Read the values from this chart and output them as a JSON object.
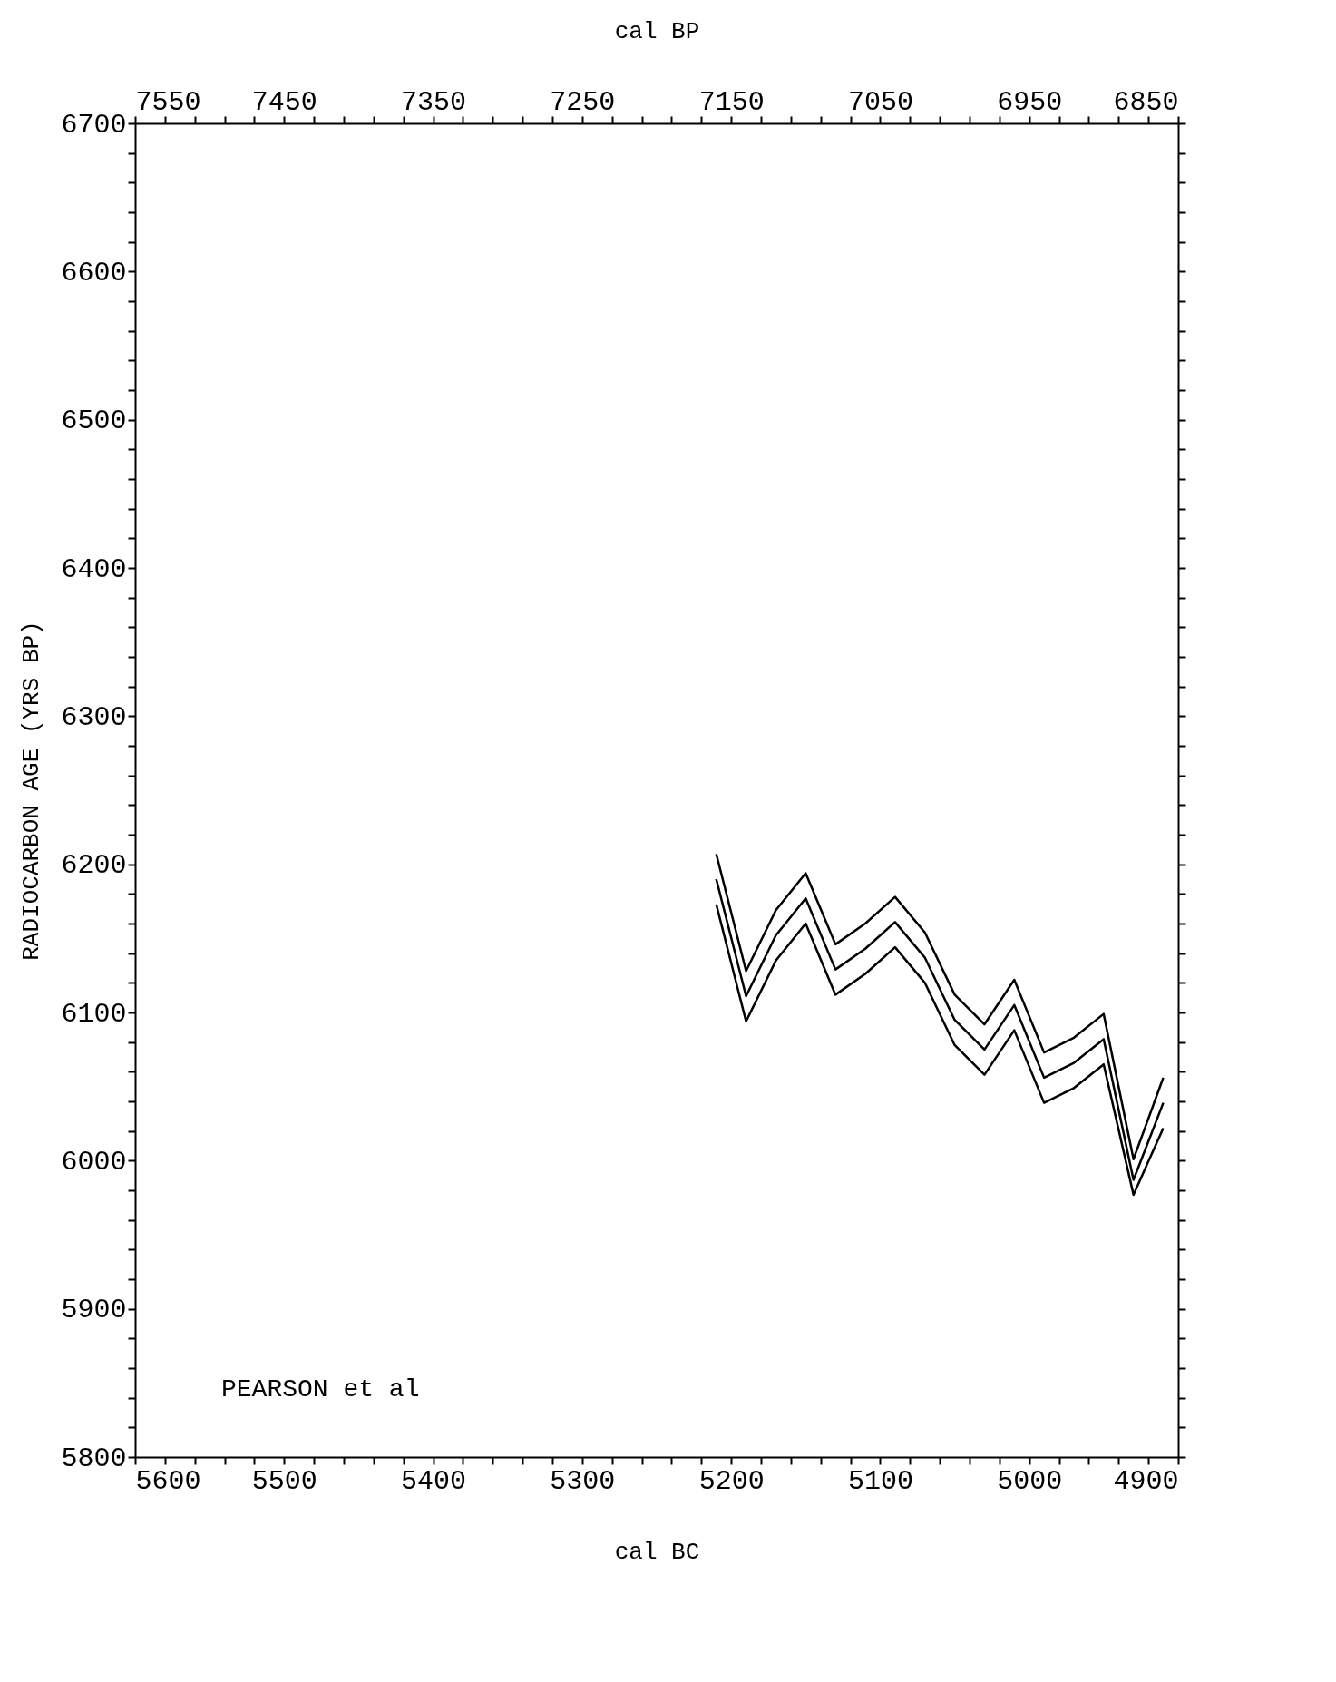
{
  "chart_data": {
    "type": "line",
    "xlabel": "cal BC",
    "x2label": "cal BP",
    "ylabel": "RADIOCARBON AGE (YRS BP)",
    "annotations": [
      "PEARSON et al"
    ],
    "x": [
      5210,
      5190,
      5170,
      5150,
      5130,
      5110,
      5090,
      5070,
      5050,
      5030,
      5010,
      4990,
      4970,
      4950,
      4930,
      4910
    ],
    "series": [
      {
        "color": "#000000",
        "values": [
          6207,
          6128,
          6169,
          6194,
          6146,
          6160,
          6178,
          6154,
          6112,
          6092,
          6122,
          6073,
          6083,
          6099,
          6001,
          6056
        ]
      },
      {
        "color": "#000000",
        "values": [
          6190,
          6111,
          6152,
          6177,
          6129,
          6143,
          6161,
          6137,
          6095,
          6075,
          6105,
          6056,
          6066,
          6082,
          5987,
          6039
        ]
      },
      {
        "color": "#000000",
        "values": [
          6173,
          6094,
          6135,
          6160,
          6112,
          6126,
          6144,
          6120,
          6078,
          6058,
          6088,
          6039,
          6049,
          6065,
          5977,
          6022
        ]
      }
    ],
    "xlim": [
      5600,
      4900
    ],
    "xticks": [
      5600,
      {
        "value": 5580,
        "label": null
      },
      {
        "value": 5560,
        "label": null
      },
      {
        "value": 5540,
        "label": null
      },
      {
        "value": 5520,
        "label": null
      },
      5500,
      {
        "value": 5480,
        "label": null
      },
      {
        "value": 5460,
        "label": null
      },
      {
        "value": 5440,
        "label": null
      },
      {
        "value": 5420,
        "label": null
      },
      5400,
      {
        "value": 5380,
        "label": null
      },
      {
        "value": 5360,
        "label": null
      },
      {
        "value": 5340,
        "label": null
      },
      {
        "value": 5320,
        "label": null
      },
      5300,
      {
        "value": 5280,
        "label": null
      },
      {
        "value": 5260,
        "label": null
      },
      {
        "value": 5240,
        "label": null
      },
      {
        "value": 5220,
        "label": null
      },
      5200,
      {
        "value": 5180,
        "label": null
      },
      {
        "value": 5160,
        "label": null
      },
      {
        "value": 5140,
        "label": null
      },
      {
        "value": 5120,
        "label": null
      },
      5100,
      {
        "value": 5080,
        "label": null
      },
      {
        "value": 5060,
        "label": null
      },
      {
        "value": 5040,
        "label": null
      },
      {
        "value": 5020,
        "label": null
      },
      5000,
      {
        "value": 4980,
        "label": null
      },
      {
        "value": 4960,
        "label": null
      },
      {
        "value": 4940,
        "label": null
      },
      {
        "value": 4920,
        "label": null
      },
      4900
    ],
    "x2lim": [
      7550,
      6850
    ],
    "x2ticks": [
      7550,
      {
        "value": 7530,
        "label": null
      },
      {
        "value": 7510,
        "label": null
      },
      {
        "value": 7490,
        "label": null
      },
      {
        "value": 7470,
        "label": null
      },
      7450,
      {
        "value": 7430,
        "label": null
      },
      {
        "value": 7410,
        "label": null
      },
      {
        "value": 7390,
        "label": null
      },
      {
        "value": 7370,
        "label": null
      },
      7350,
      {
        "value": 7330,
        "label": null
      },
      {
        "value": 7310,
        "label": null
      },
      {
        "value": 7290,
        "label": null
      },
      {
        "value": 7270,
        "label": null
      },
      7250,
      {
        "value": 7230,
        "label": null
      },
      {
        "value": 7210,
        "label": null
      },
      {
        "value": 7190,
        "label": null
      },
      {
        "value": 7170,
        "label": null
      },
      7150,
      {
        "value": 7130,
        "label": null
      },
      {
        "value": 7110,
        "label": null
      },
      {
        "value": 7090,
        "label": null
      },
      {
        "value": 7070,
        "label": null
      },
      7050,
      {
        "value": 7030,
        "label": null
      },
      {
        "value": 7010,
        "label": null
      },
      {
        "value": 6990,
        "label": null
      },
      {
        "value": 6970,
        "label": null
      },
      6950,
      {
        "value": 6930,
        "label": null
      },
      {
        "value": 6910,
        "label": null
      },
      {
        "value": 6890,
        "label": null
      },
      {
        "value": 6870,
        "label": null
      },
      6850
    ],
    "ylim": [
      5800,
      6700
    ],
    "yticks": [
      5800,
      {
        "value": 5820,
        "label": null
      },
      {
        "value": 5840,
        "label": null
      },
      {
        "value": 5860,
        "label": null
      },
      {
        "value": 5880,
        "label": null
      },
      5900,
      {
        "value": 5920,
        "label": null
      },
      {
        "value": 5940,
        "label": null
      },
      {
        "value": 5960,
        "label": null
      },
      {
        "value": 5980,
        "label": null
      },
      6000,
      {
        "value": 6020,
        "label": null
      },
      {
        "value": 6040,
        "label": null
      },
      {
        "value": 6060,
        "label": null
      },
      {
        "value": 6080,
        "label": null
      },
      6100,
      {
        "value": 6120,
        "label": null
      },
      {
        "value": 6140,
        "label": null
      },
      {
        "value": 6160,
        "label": null
      },
      {
        "value": 6180,
        "label": null
      },
      6200,
      {
        "value": 6220,
        "label": null
      },
      {
        "value": 6240,
        "label": null
      },
      {
        "value": 6260,
        "label": null
      },
      {
        "value": 6280,
        "label": null
      },
      6300,
      {
        "value": 6320,
        "label": null
      },
      {
        "value": 6340,
        "label": null
      },
      {
        "value": 6360,
        "label": null
      },
      {
        "value": 6380,
        "label": null
      },
      6400,
      {
        "value": 6420,
        "label": null
      },
      {
        "value": 6440,
        "label": null
      },
      {
        "value": 6460,
        "label": null
      },
      {
        "value": 6480,
        "label": null
      },
      6500,
      {
        "value": 6520,
        "label": null
      },
      {
        "value": 6540,
        "label": null
      },
      {
        "value": 6560,
        "label": null
      },
      {
        "value": 6580,
        "label": null
      },
      6600,
      {
        "value": 6620,
        "label": null
      },
      {
        "value": 6640,
        "label": null
      },
      {
        "value": 6660,
        "label": null
      },
      {
        "value": 6680,
        "label": null
      },
      6700
    ],
    "grid": false,
    "legend": false,
    "marker": "none",
    "line_style": "solid"
  }
}
